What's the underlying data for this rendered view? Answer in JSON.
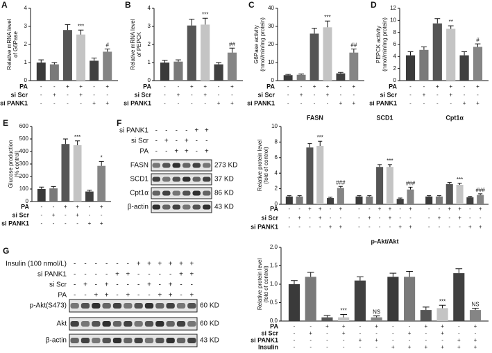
{
  "chart_data": [
    {
      "type": "bar",
      "label": "A",
      "ylabel": [
        "Relative mRNA level",
        "of G6Pase"
      ],
      "ylim": [
        0,
        4
      ],
      "yticks": [
        0,
        1,
        2,
        3,
        4
      ],
      "values": [
        1.0,
        0.9,
        2.8,
        2.55,
        1.1,
        1.6
      ],
      "errors": [
        0.15,
        0.1,
        0.3,
        0.25,
        0.15,
        0.15
      ],
      "colors": [
        "#3a3a3a",
        "#7a7a7a",
        "#555555",
        "#c4c4c4",
        "#404040",
        "#858585"
      ],
      "annotations": [
        null,
        null,
        null,
        "***",
        null,
        "#"
      ],
      "conditions": [
        {
          "name": "PA",
          "signs": [
            "-",
            "-",
            "+",
            "+",
            "-",
            "+"
          ]
        },
        {
          "name": "si Scr",
          "signs": [
            "-",
            "+",
            "-",
            "+",
            "-",
            "-"
          ]
        },
        {
          "name": "si PANK1",
          "signs": [
            "-",
            "-",
            "-",
            "-",
            "+",
            "+"
          ]
        }
      ]
    },
    {
      "type": "bar",
      "label": "B",
      "ylabel": [
        "Relative mRNA level",
        "of PEPCK"
      ],
      "ylim": [
        0,
        4
      ],
      "yticks": [
        0,
        1,
        2,
        3,
        4
      ],
      "values": [
        1.0,
        1.05,
        3.05,
        3.1,
        0.9,
        1.55
      ],
      "errors": [
        0.12,
        0.1,
        0.35,
        0.35,
        0.1,
        0.25
      ],
      "colors": [
        "#3a3a3a",
        "#7a7a7a",
        "#555555",
        "#c4c4c4",
        "#404040",
        "#858585"
      ],
      "annotations": [
        null,
        null,
        null,
        "***",
        null,
        "##"
      ],
      "conditions": [
        {
          "name": "PA",
          "signs": [
            "-",
            "-",
            "+",
            "+",
            "-",
            "+"
          ]
        },
        {
          "name": "si Scr",
          "signs": [
            "-",
            "+",
            "-",
            "+",
            "-",
            "-"
          ]
        },
        {
          "name": "si PANK1",
          "signs": [
            "-",
            "-",
            "-",
            "-",
            "+",
            "+"
          ]
        }
      ]
    },
    {
      "type": "bar",
      "label": "C",
      "ylabel": [
        "G6Pase activity",
        "(nmol/min/mg protein)"
      ],
      "ylim": [
        0,
        40
      ],
      "yticks": [
        0,
        10,
        20,
        30,
        40
      ],
      "values": [
        3,
        3.2,
        26,
        29.5,
        4,
        15.5
      ],
      "errors": [
        0.4,
        0.5,
        3,
        3.5,
        0.5,
        2
      ],
      "colors": [
        "#3a3a3a",
        "#7a7a7a",
        "#555555",
        "#c4c4c4",
        "#404040",
        "#858585"
      ],
      "annotations": [
        null,
        null,
        null,
        "***",
        null,
        "##"
      ],
      "conditions": [
        {
          "name": "PA",
          "signs": [
            "-",
            "-",
            "+",
            "+",
            "-",
            "+"
          ]
        },
        {
          "name": "si Scr",
          "signs": [
            "-",
            "+",
            "-",
            "+",
            "-",
            "-"
          ]
        },
        {
          "name": "si PANK1",
          "signs": [
            "-",
            "-",
            "-",
            "-",
            "+",
            "+"
          ]
        }
      ]
    },
    {
      "type": "bar",
      "label": "D",
      "ylabel": [
        "PEPCK activity",
        "(nmol/min/mg protein)"
      ],
      "ylim": [
        0,
        12
      ],
      "yticks": [
        0,
        2,
        4,
        6,
        8,
        10,
        12
      ],
      "values": [
        4.2,
        5.1,
        9.5,
        8.6,
        4.2,
        5.6
      ],
      "errors": [
        0.6,
        0.5,
        0.8,
        0.5,
        0.6,
        0.5
      ],
      "colors": [
        "#3a3a3a",
        "#7a7a7a",
        "#555555",
        "#c4c4c4",
        "#404040",
        "#858585"
      ],
      "annotations": [
        null,
        null,
        null,
        "**",
        null,
        "#"
      ],
      "conditions": [
        {
          "name": "PA",
          "signs": [
            "-",
            "-",
            "+",
            "+",
            "-",
            "+"
          ]
        },
        {
          "name": "si Scr",
          "signs": [
            "-",
            "+",
            "-",
            "+",
            "-",
            "-"
          ]
        },
        {
          "name": "si PANK1",
          "signs": [
            "-",
            "-",
            "-",
            "-",
            "+",
            "+"
          ]
        }
      ]
    },
    {
      "type": "bar",
      "label": "E",
      "ylabel": [
        "Glucose production",
        "(% control)"
      ],
      "ylim": [
        0,
        600
      ],
      "yticks": [
        0,
        100,
        200,
        300,
        400,
        500,
        600
      ],
      "values": [
        100,
        105,
        460,
        450,
        80,
        285
      ],
      "errors": [
        15,
        15,
        40,
        35,
        10,
        35
      ],
      "colors": [
        "#3a3a3a",
        "#7a7a7a",
        "#555555",
        "#c4c4c4",
        "#404040",
        "#858585"
      ],
      "annotations": [
        null,
        null,
        null,
        "***",
        null,
        "*"
      ],
      "conditions": [
        {
          "name": "PA",
          "signs": [
            "-",
            "-",
            "+",
            "+",
            "-",
            "+"
          ]
        },
        {
          "name": "si Scr",
          "signs": [
            "-",
            "+",
            "-",
            "+",
            "-",
            "-"
          ]
        },
        {
          "name": "si PANK1",
          "signs": [
            "-",
            "-",
            "-",
            "-",
            "+",
            "+"
          ]
        }
      ]
    },
    {
      "type": "bar",
      "ylabel": [
        "Relative protein level",
        "(fold of control)"
      ],
      "ylim": [
        0,
        10
      ],
      "yticks": [
        0,
        2,
        4,
        6,
        8,
        10
      ],
      "group_labels": [
        "FASN",
        "SCD1",
        "Cpt1α"
      ],
      "values": [
        1,
        1,
        7.3,
        7.5,
        0.8,
        2.1,
        1,
        1,
        4.8,
        4.8,
        0.7,
        1.9,
        1,
        1,
        2.6,
        2.5,
        0.9,
        1.2
      ],
      "errors": [
        0.1,
        0.1,
        0.5,
        0.6,
        0.1,
        0.2,
        0.1,
        0.1,
        0.3,
        0.3,
        0.1,
        0.3,
        0.1,
        0.1,
        0.2,
        0.2,
        0.1,
        0.15
      ],
      "colors": [
        "#3a3a3a",
        "#7a7a7a",
        "#555555",
        "#c4c4c4",
        "#404040",
        "#858585"
      ],
      "annotations": [
        null,
        null,
        null,
        "***",
        null,
        "###",
        null,
        null,
        null,
        "***",
        null,
        "###",
        null,
        null,
        null,
        "***",
        null,
        "###"
      ],
      "conditions": [
        {
          "name": "PA",
          "signs": [
            "-",
            "-",
            "+",
            "+",
            "-",
            "+",
            "-",
            "-",
            "+",
            "+",
            "-",
            "+",
            "-",
            "-",
            "+",
            "+",
            "-",
            "+"
          ]
        },
        {
          "name": "si Scr",
          "signs": [
            "-",
            "+",
            "-",
            "+",
            "-",
            "-",
            "-",
            "+",
            "-",
            "+",
            "-",
            "-",
            "-",
            "+",
            "-",
            "+",
            "-",
            "-"
          ]
        },
        {
          "name": "si PANK1",
          "signs": [
            "-",
            "-",
            "-",
            "-",
            "+",
            "+",
            "-",
            "-",
            "-",
            "-",
            "+",
            "+",
            "-",
            "-",
            "-",
            "-",
            "+",
            "+"
          ]
        }
      ]
    },
    {
      "type": "bar",
      "title": "p-Akt/Akt",
      "ylabel": [
        "Relative protein level",
        "(fold of control)"
      ],
      "ylim": [
        0,
        2
      ],
      "yticks": [
        {
          "value": 0,
          "label": "0.0"
        },
        0.5,
        {
          "value": 1,
          "label": "1.0"
        },
        1.5,
        {
          "value": 2,
          "label": "2.0"
        }
      ],
      "values": [
        1.0,
        1.2,
        0.1,
        0.1,
        1.1,
        0.1,
        1.2,
        1.2,
        0.3,
        0.35,
        1.3,
        0.3
      ],
      "errors": [
        0.1,
        0.12,
        0.05,
        0.08,
        0.1,
        0.04,
        0.1,
        0.15,
        0.08,
        0.08,
        0.12,
        0.05
      ],
      "colors": [
        "#3a3a3a",
        "#7a7a7a",
        "#555555",
        "#c4c4c4",
        "#404040",
        "#858585"
      ],
      "annotations": [
        null,
        null,
        null,
        "***",
        null,
        "NS",
        null,
        null,
        null,
        "***",
        null,
        "NS"
      ],
      "conditions": [
        {
          "name": "PA",
          "signs": [
            "-",
            "-",
            "+",
            "+",
            "-",
            "+",
            "-",
            "-",
            "+",
            "+",
            "-",
            "+"
          ]
        },
        {
          "name": "si Scr",
          "signs": [
            "-",
            "+",
            "-",
            "+",
            "-",
            "-",
            "-",
            "+",
            "-",
            "+",
            "-",
            "-"
          ]
        },
        {
          "name": "si PANK1",
          "signs": [
            "-",
            "-",
            "-",
            "-",
            "+",
            "+",
            "-",
            "-",
            "-",
            "-",
            "+",
            "+"
          ]
        },
        {
          "name": "Insulin",
          "signs": [
            "-",
            "-",
            "-",
            "-",
            "-",
            "-",
            "+",
            "+",
            "+",
            "+",
            "+",
            "+"
          ]
        }
      ]
    }
  ],
  "blots": [
    {
      "label": "F",
      "conditions": [
        {
          "name": "si PANK1",
          "signs": [
            "-",
            "-",
            "-",
            "-",
            "+",
            "+"
          ]
        },
        {
          "name": "si Scr",
          "signs": [
            "-",
            "+",
            "-",
            "+",
            "-",
            "-"
          ]
        },
        {
          "name": "PA",
          "signs": [
            "-",
            "-",
            "+",
            "+",
            "-",
            "+"
          ]
        }
      ],
      "bands": [
        {
          "name": "FASN",
          "size": "273 KD"
        },
        {
          "name": "SCD1",
          "size": "37 KD"
        },
        {
          "name": "Cpt1α",
          "size": "86 KD"
        },
        {
          "name": "β-actin",
          "size": "43 KD"
        }
      ]
    },
    {
      "label": "G",
      "conditions": [
        {
          "name": "Insulin (100 nmol/L)",
          "signs": [
            "-",
            "-",
            "-",
            "-",
            "-",
            "-",
            "+",
            "+",
            "+",
            "+",
            "+",
            "+"
          ]
        },
        {
          "name": "si PANK1",
          "signs": [
            "-",
            "-",
            "-",
            "-",
            "+",
            "+",
            "-",
            "-",
            "-",
            "-",
            "+",
            "+"
          ]
        },
        {
          "name": "si Scr",
          "signs": [
            "-",
            "+",
            "-",
            "+",
            "-",
            "-",
            "-",
            "+",
            "-",
            "+",
            "-",
            "-"
          ]
        },
        {
          "name": "PA",
          "signs": [
            "-",
            "-",
            "+",
            "+",
            "-",
            "+",
            "-",
            "-",
            "+",
            "+",
            "-",
            "+"
          ]
        }
      ],
      "bands": [
        {
          "name": "p-Akt(S473)",
          "size": "60 KD"
        },
        {
          "name": "Akt",
          "size": "60 KD"
        },
        {
          "name": "β-actin",
          "size": "43 KD"
        }
      ]
    }
  ]
}
